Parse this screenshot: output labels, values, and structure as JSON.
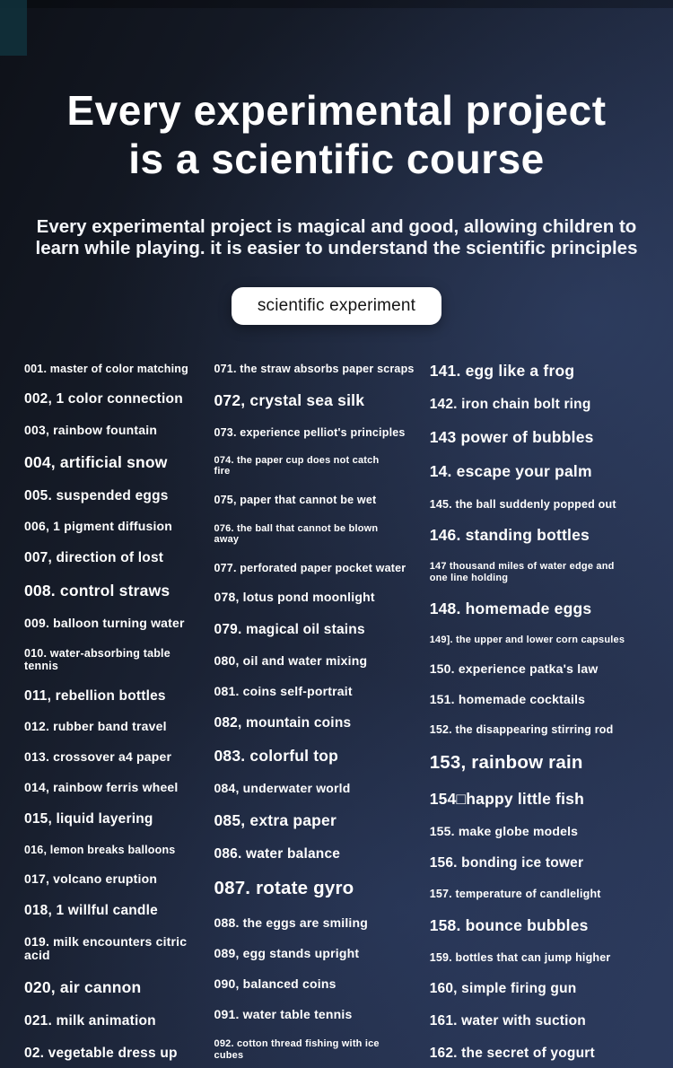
{
  "page": {
    "title_line1": "Every experimental project",
    "title_line2": "is a scientific course",
    "subtitle_line1": "Every experimental project is magical and good, allowing children to",
    "subtitle_line2": "learn while playing. it is easier to understand the scientific principles",
    "badge_label": "scientific experiment"
  },
  "colors": {
    "background_dark": "#0e1118",
    "background_blue": "#2c3a5c",
    "text": "#ffffff",
    "badge_bg": "#ffffff",
    "badge_text": "#151515"
  },
  "columns": [
    {
      "items": [
        {
          "text": "001. master of color matching",
          "size": "sm"
        },
        {
          "text": "002, 1 color connection",
          "size": "lg"
        },
        {
          "text": "003, rainbow fountain",
          "size": "md"
        },
        {
          "text": "004, artificial snow",
          "size": "xl"
        },
        {
          "text": "005. suspended eggs",
          "size": "lg"
        },
        {
          "text": "006, 1 pigment diffusion",
          "size": "md"
        },
        {
          "text": "007, direction of lost",
          "size": "lg"
        },
        {
          "text": "008. control straws",
          "size": "xl"
        },
        {
          "text": "009. balloon turning water",
          "size": "md"
        },
        {
          "text": "010. water-absorbing table\ntennis",
          "size": "sm"
        },
        {
          "text": "011, rebellion bottles",
          "size": "lg"
        },
        {
          "text": "012. rubber band travel",
          "size": "md"
        },
        {
          "text": "013. crossover a4 paper",
          "size": "md"
        },
        {
          "text": "014, rainbow ferris wheel",
          "size": "md"
        },
        {
          "text": "015, liquid layering",
          "size": "lg"
        },
        {
          "text": "016, lemon breaks balloons",
          "size": "sm"
        },
        {
          "text": "017, volcano eruption",
          "size": "md"
        },
        {
          "text": "018, 1 willful candle",
          "size": "lg"
        },
        {
          "text": "019. milk encounters citric acid",
          "size": "md"
        },
        {
          "text": "020, air cannon",
          "size": "xl"
        },
        {
          "text": "021. milk animation",
          "size": "lg"
        },
        {
          "text": "02. vegetable dress up",
          "size": "lg"
        }
      ]
    },
    {
      "items": [
        {
          "text": "071. the straw absorbs paper scraps",
          "size": "sm"
        },
        {
          "text": "072, crystal sea silk",
          "size": "xl"
        },
        {
          "text": "073. experience pelliot's principles",
          "size": "sm"
        },
        {
          "text": "074. the paper cup does not catch\nfire",
          "size": "xs"
        },
        {
          "text": "075, paper that cannot be wet",
          "size": "sm"
        },
        {
          "text": "076. the ball that cannot be blown\naway",
          "size": "xs"
        },
        {
          "text": "077. perforated paper pocket water",
          "size": "sm"
        },
        {
          "text": "078, lotus pond moonlight",
          "size": "md"
        },
        {
          "text": "079. magical oil stains",
          "size": "lg"
        },
        {
          "text": "080, oil and water mixing",
          "size": "md"
        },
        {
          "text": "081. coins self-portrait",
          "size": "md"
        },
        {
          "text": "082, mountain coins",
          "size": "lg"
        },
        {
          "text": "083. colorful top",
          "size": "xl"
        },
        {
          "text": "084, underwater world",
          "size": "md"
        },
        {
          "text": "085, extra paper",
          "size": "xl"
        },
        {
          "text": "086. water balance",
          "size": "lg"
        },
        {
          "text": "087. rotate gyro",
          "size": "xxl"
        },
        {
          "text": "088. the eggs are smiling",
          "size": "md"
        },
        {
          "text": "089, egg stands upright",
          "size": "md"
        },
        {
          "text": "090, balanced coins",
          "size": "md"
        },
        {
          "text": "091. water table tennis",
          "size": "md"
        },
        {
          "text": "092. cotton thread fishing with ice\ncubes",
          "size": "xs"
        }
      ]
    },
    {
      "items": [
        {
          "text": "141. egg like a frog",
          "size": "xl"
        },
        {
          "text": "142. iron chain bolt ring",
          "size": "lg"
        },
        {
          "text": "143 power of bubbles",
          "size": "xl"
        },
        {
          "text": "14. escape your palm",
          "size": "xl"
        },
        {
          "text": "145. the ball suddenly popped out",
          "size": "sm"
        },
        {
          "text": "146. standing bottles",
          "size": "xl"
        },
        {
          "text": "147 thousand miles of water edge and\none line holding",
          "size": "xs"
        },
        {
          "text": "148. homemade eggs",
          "size": "xl"
        },
        {
          "text": "149]. the upper and lower corn capsules",
          "size": "xs"
        },
        {
          "text": "150. experience patka's law",
          "size": "md"
        },
        {
          "text": "151. homemade cocktails",
          "size": "md"
        },
        {
          "text": "152. the disappearing stirring rod",
          "size": "sm"
        },
        {
          "text": "153, rainbow rain",
          "size": "xxl"
        },
        {
          "text": "154□happy little fish",
          "size": "xl"
        },
        {
          "text": "155. make globe models",
          "size": "md"
        },
        {
          "text": "156. bonding ice tower",
          "size": "lg"
        },
        {
          "text": "157. temperature of candlelight",
          "size": "sm"
        },
        {
          "text": "158. bounce bubbles",
          "size": "xl"
        },
        {
          "text": "159. bottles that can jump higher",
          "size": "sm"
        },
        {
          "text": "160, simple firing gun",
          "size": "lg"
        },
        {
          "text": "161. water with suction",
          "size": "lg"
        },
        {
          "text": "162. the secret of yogurt",
          "size": "lg"
        }
      ]
    }
  ]
}
